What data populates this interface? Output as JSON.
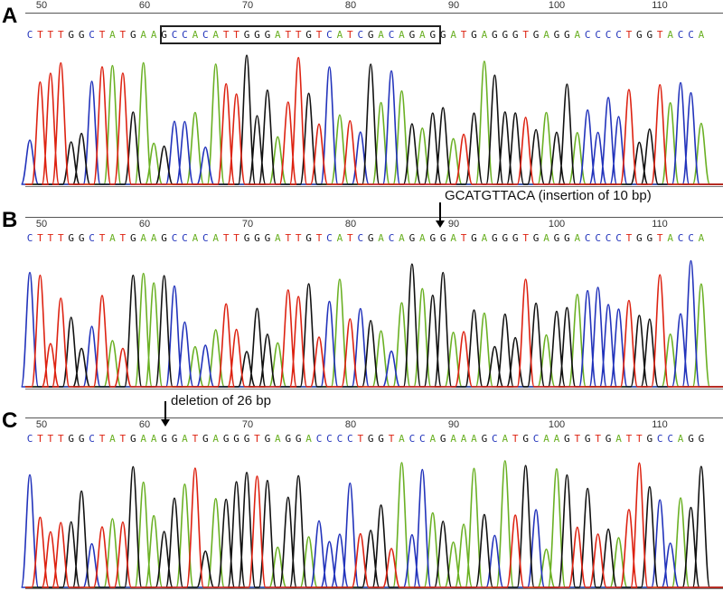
{
  "base_colors": {
    "A": "#6ab023",
    "C": "#2233bb",
    "G": "#111111",
    "T": "#dd2211"
  },
  "panels": [
    {
      "letter": "A",
      "annotation": "",
      "tick_labels": [
        "50",
        "60",
        "70",
        "80",
        "90",
        "100",
        "110"
      ],
      "sequence": "CTTTGGCTATGAAGCCACATTGGGATTGTCATCGACAGAGGATGAGGGTGAGGACCCCTGGTACCA"
    },
    {
      "letter": "B",
      "annotation": "GCATGTTACA  (insertion of 10 bp)",
      "tick_labels": [
        "50",
        "60",
        "70",
        "80",
        "90",
        "100",
        "110"
      ],
      "sequence": "CTTTGGCTATGAAGCCACATTGGGATTGTCATCGACAGAGGATGAGGGTGAGGACCCCTGGTACCA"
    },
    {
      "letter": "C",
      "annotation": "deletion of 26 bp",
      "tick_labels": [
        "50",
        "60",
        "70",
        "80",
        "90",
        "100",
        "110"
      ],
      "sequence": "CTTTGGCTATGAAGGATGAGGGTGAGGACCCCTGGTACCAGAAAGCATGCAAGTGTGATTGCCAGG"
    }
  ]
}
